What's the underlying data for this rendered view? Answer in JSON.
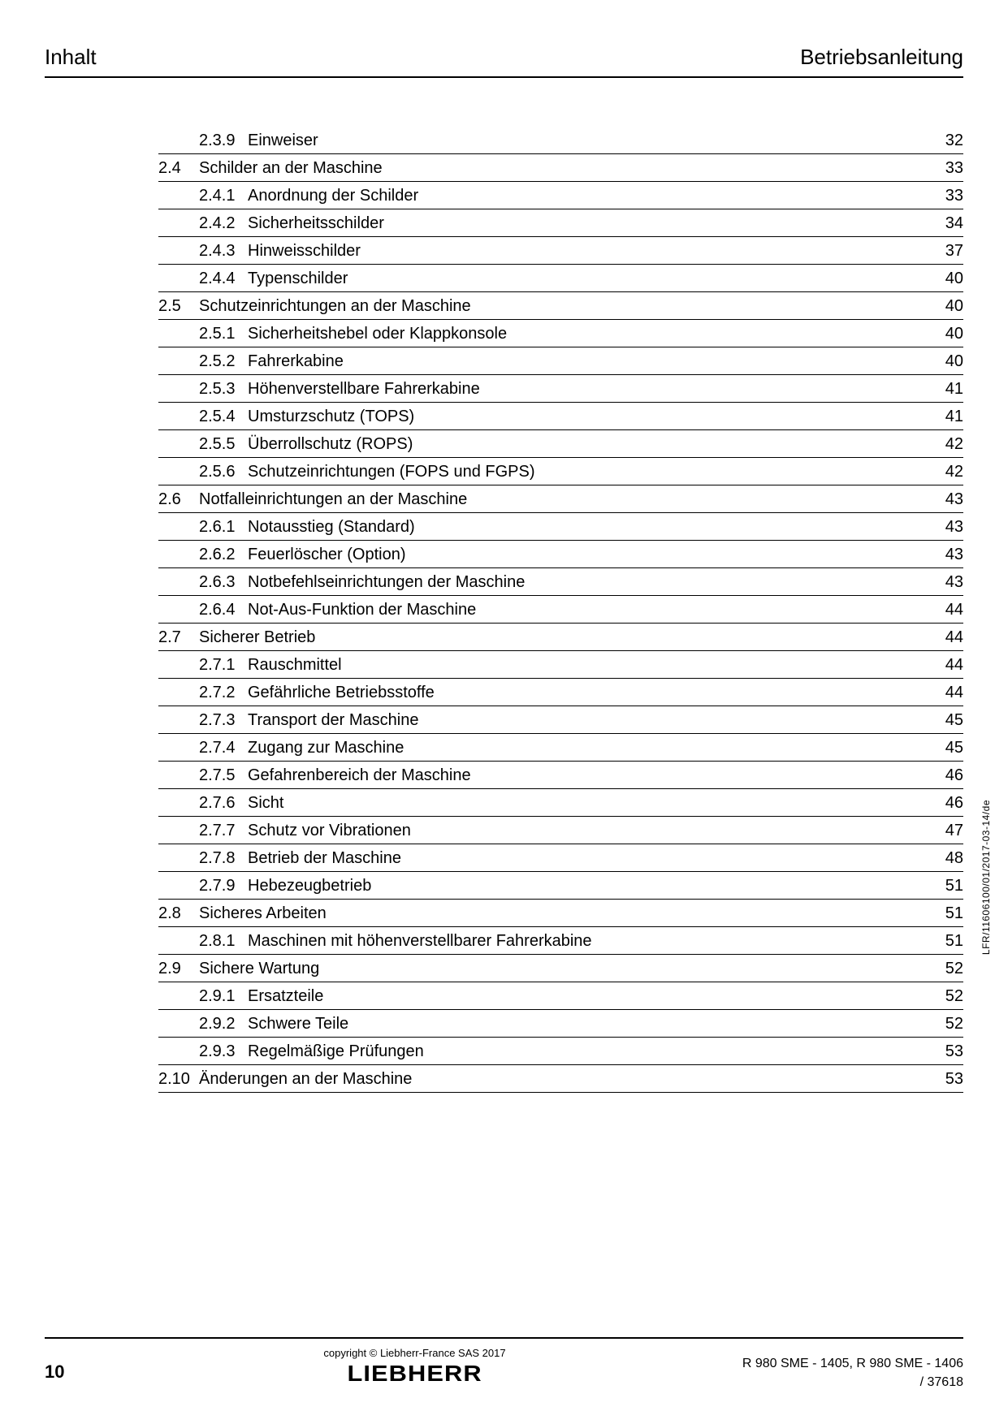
{
  "header": {
    "left": "Inhalt",
    "right": "Betriebsanleitung"
  },
  "toc": [
    {
      "type": "sub",
      "num": "2.3.9",
      "title": "Einweiser",
      "page": "32"
    },
    {
      "type": "section",
      "num": "2.4",
      "title": "Schilder an der Maschine",
      "page": "33"
    },
    {
      "type": "sub",
      "num": "2.4.1",
      "title": "Anordnung der Schilder",
      "page": "33"
    },
    {
      "type": "sub",
      "num": "2.4.2",
      "title": "Sicherheitsschilder",
      "page": "34"
    },
    {
      "type": "sub",
      "num": "2.4.3",
      "title": "Hinweisschilder",
      "page": "37"
    },
    {
      "type": "sub",
      "num": "2.4.4",
      "title": "Typenschilder",
      "page": "40"
    },
    {
      "type": "section",
      "num": "2.5",
      "title": "Schutzeinrichtungen an der Maschine",
      "page": "40"
    },
    {
      "type": "sub",
      "num": "2.5.1",
      "title": "Sicherheitshebel oder Klappkonsole",
      "page": "40"
    },
    {
      "type": "sub",
      "num": "2.5.2",
      "title": "Fahrerkabine",
      "page": "40"
    },
    {
      "type": "sub",
      "num": "2.5.3",
      "title": "Höhenverstellbare Fahrerkabine",
      "page": "41"
    },
    {
      "type": "sub",
      "num": "2.5.4",
      "title": "Umsturzschutz (TOPS)",
      "page": "41"
    },
    {
      "type": "sub",
      "num": "2.5.5",
      "title": "Überrollschutz (ROPS)",
      "page": "42"
    },
    {
      "type": "sub",
      "num": "2.5.6",
      "title": "Schutzeinrichtungen (FOPS und FGPS)",
      "page": "42"
    },
    {
      "type": "section",
      "num": "2.6",
      "title": "Notfalleinrichtungen an der Maschine",
      "page": "43"
    },
    {
      "type": "sub",
      "num": "2.6.1",
      "title": "Notausstieg (Standard)",
      "page": "43"
    },
    {
      "type": "sub",
      "num": "2.6.2",
      "title": "Feuerlöscher (Option)",
      "page": "43"
    },
    {
      "type": "sub",
      "num": "2.6.3",
      "title": "Notbefehlseinrichtungen der Maschine",
      "page": "43"
    },
    {
      "type": "sub",
      "num": "2.6.4",
      "title": "Not-Aus-Funktion der Maschine",
      "page": "44"
    },
    {
      "type": "section",
      "num": "2.7",
      "title": "Sicherer Betrieb",
      "page": "44"
    },
    {
      "type": "sub",
      "num": "2.7.1",
      "title": "Rauschmittel",
      "page": "44"
    },
    {
      "type": "sub",
      "num": "2.7.2",
      "title": "Gefährliche Betriebsstoffe",
      "page": "44"
    },
    {
      "type": "sub",
      "num": "2.7.3",
      "title": "Transport der Maschine",
      "page": "45"
    },
    {
      "type": "sub",
      "num": "2.7.4",
      "title": "Zugang zur Maschine",
      "page": "45"
    },
    {
      "type": "sub",
      "num": "2.7.5",
      "title": "Gefahrenbereich der Maschine",
      "page": "46"
    },
    {
      "type": "sub",
      "num": "2.7.6",
      "title": "Sicht",
      "page": "46"
    },
    {
      "type": "sub",
      "num": "2.7.7",
      "title": "Schutz vor Vibrationen",
      "page": "47"
    },
    {
      "type": "sub",
      "num": "2.7.8",
      "title": "Betrieb der Maschine",
      "page": "48"
    },
    {
      "type": "sub",
      "num": "2.7.9",
      "title": "Hebezeugbetrieb",
      "page": "51"
    },
    {
      "type": "section",
      "num": "2.8",
      "title": "Sicheres Arbeiten",
      "page": "51"
    },
    {
      "type": "sub",
      "num": "2.8.1",
      "title": "Maschinen mit höhenverstellbarer Fahrerkabine",
      "page": "51"
    },
    {
      "type": "section",
      "num": "2.9",
      "title": "Sichere Wartung",
      "page": "52"
    },
    {
      "type": "sub",
      "num": "2.9.1",
      "title": "Ersatzteile",
      "page": "52"
    },
    {
      "type": "sub",
      "num": "2.9.2",
      "title": "Schwere Teile",
      "page": "52"
    },
    {
      "type": "sub",
      "num": "2.9.3",
      "title": "Regelmäßige Prüfungen",
      "page": "53"
    },
    {
      "type": "section",
      "num": "2.10",
      "title": "Änderungen an der Maschine",
      "page": "53"
    }
  ],
  "side_text": "LFR/11606100/01/2017-03-14/de",
  "footer": {
    "page_number": "10",
    "copyright": "copyright © Liebherr-France SAS 2017",
    "brand": "LIEBHERR",
    "right_line1": "R 980 SME  - 1405, R 980 SME  - 1406",
    "right_line2": "/ 37618"
  }
}
